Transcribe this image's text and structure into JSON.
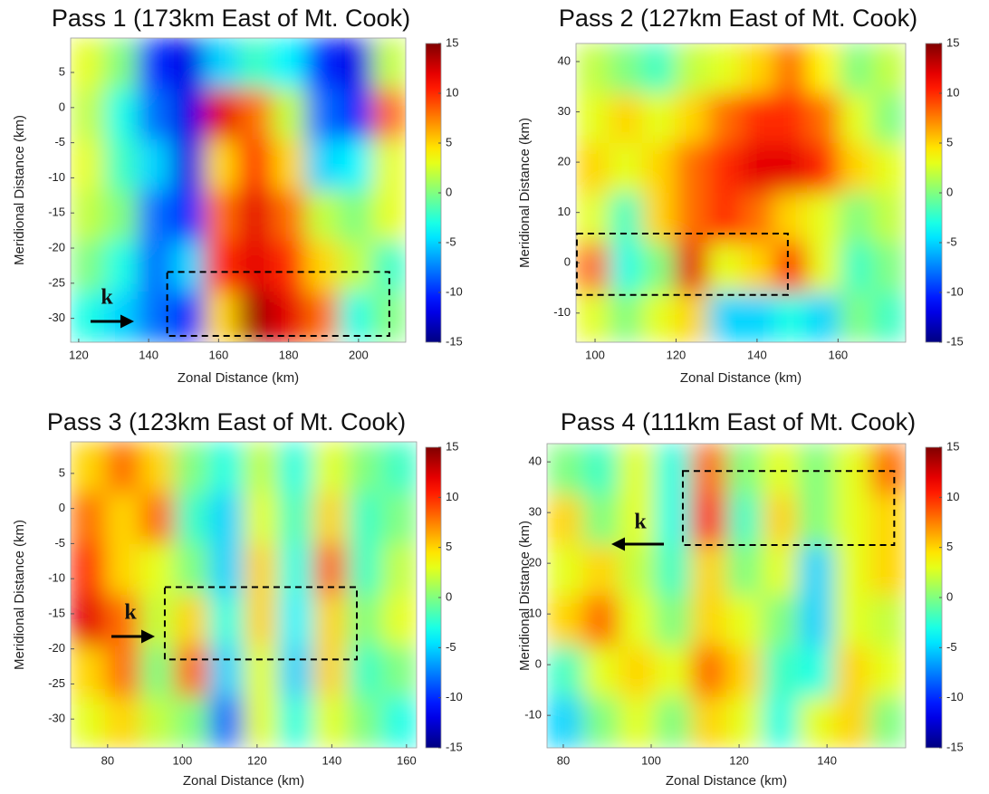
{
  "chart_data": [
    {
      "type": "heatmap",
      "title": "Pass 1 (173km East of Mt. Cook)",
      "xlabel": "Zonal Distance (km)",
      "ylabel": "Meridional Distance (km)",
      "colormap": "jet",
      "xlim": [
        117.7,
        213.5
      ],
      "ylim": [
        -33.4,
        9.9
      ],
      "xticks": [
        120,
        140,
        160,
        180,
        200
      ],
      "yticks": [
        5,
        0,
        -5,
        -10,
        -15,
        -20,
        -25,
        -30
      ],
      "zlim": [
        -15,
        15
      ],
      "zticks": [
        15,
        10,
        5,
        0,
        -5,
        -10,
        -15
      ],
      "z": [
        [
          3,
          0,
          -10,
          -12,
          -5,
          -2,
          -4,
          -10,
          -12,
          2
        ],
        [
          2,
          -3,
          -8,
          -12,
          12,
          8,
          2,
          -8,
          -10,
          8
        ],
        [
          3,
          -2,
          -5,
          -12,
          5,
          10,
          5,
          -5,
          -4,
          3
        ],
        [
          2,
          0,
          -8,
          -10,
          8,
          12,
          8,
          2,
          0,
          3
        ],
        [
          0,
          -3,
          -8,
          -5,
          10,
          12,
          10,
          5,
          2,
          -2
        ],
        [
          -3,
          -5,
          -8,
          -10,
          5,
          14,
          12,
          8,
          -3,
          0
        ]
      ],
      "box": {
        "x": [
          145.3,
          208.8
        ],
        "y": [
          -32.5,
          -23.4
        ]
      },
      "annotations": [
        {
          "text": "k"
        }
      ]
    },
    {
      "type": "heatmap",
      "title": "Pass 2 (127km East of Mt. Cook)",
      "xlabel": "Zonal Distance (km)",
      "ylabel": "Meridional Distance (km)",
      "colormap": "jet",
      "xlim": [
        95.3,
        176.7
      ],
      "ylim": [
        -15.8,
        43.6
      ],
      "xticks": [
        100,
        120,
        140,
        160
      ],
      "yticks": [
        40,
        30,
        20,
        10,
        0,
        -10
      ],
      "zlim": [
        -15,
        15
      ],
      "zticks": [
        15,
        10,
        5,
        0,
        -5,
        -10,
        -15
      ],
      "z": [
        [
          2,
          0,
          -2,
          2,
          3,
          5,
          8,
          4,
          0,
          2
        ],
        [
          3,
          5,
          3,
          5,
          8,
          10,
          10,
          8,
          3,
          0
        ],
        [
          5,
          3,
          5,
          8,
          10,
          12,
          12,
          10,
          5,
          3
        ],
        [
          3,
          -2,
          5,
          8,
          10,
          8,
          5,
          3,
          0,
          2
        ],
        [
          8,
          -3,
          0,
          12,
          3,
          5,
          10,
          3,
          -2,
          0
        ],
        [
          3,
          0,
          3,
          5,
          -5,
          -5,
          -3,
          -5,
          0,
          -2
        ]
      ],
      "box": {
        "x": [
          95.5,
          147.6
        ],
        "y": [
          -6.4,
          5.8
        ]
      }
    },
    {
      "type": "heatmap",
      "title": "Pass 3 (123km East of Mt. Cook)",
      "xlabel": "Zonal Distance (km)",
      "ylabel": "Meridional Distance (km)",
      "colormap": "jet",
      "xlim": [
        70.1,
        162.7
      ],
      "ylim": [
        -34.1,
        9.5
      ],
      "xticks": [
        80,
        100,
        120,
        140,
        160
      ],
      "yticks": [
        5,
        0,
        -5,
        -10,
        -15,
        -20,
        -25,
        -30
      ],
      "zlim": [
        -15,
        15
      ],
      "zticks": [
        15,
        10,
        5,
        0,
        -5,
        -10,
        -15
      ],
      "z": [
        [
          5,
          8,
          5,
          0,
          -3,
          2,
          -3,
          3,
          0,
          -2
        ],
        [
          8,
          5,
          8,
          -2,
          -5,
          3,
          -2,
          5,
          -2,
          0
        ],
        [
          10,
          5,
          3,
          0,
          -5,
          5,
          -3,
          8,
          -2,
          2
        ],
        [
          12,
          8,
          2,
          5,
          -3,
          5,
          -4,
          5,
          0,
          3
        ],
        [
          5,
          8,
          0,
          8,
          -5,
          3,
          -5,
          5,
          -2,
          0
        ],
        [
          3,
          5,
          2,
          0,
          -8,
          3,
          -3,
          3,
          0,
          -3
        ]
      ],
      "box": {
        "x": [
          95.3,
          146.7
        ],
        "y": [
          -21.5,
          -11.2
        ]
      },
      "annotations": [
        {
          "text": "k"
        }
      ]
    },
    {
      "type": "heatmap",
      "title": "Pass 4 (111km East of Mt. Cook)",
      "xlabel": "Zonal Distance (km)",
      "ylabel": "Meridional Distance (km)",
      "colormap": "jet",
      "xlim": [
        76.3,
        157.9
      ],
      "ylim": [
        -16.4,
        43.6
      ],
      "xticks": [
        80,
        100,
        120,
        140
      ],
      "yticks": [
        40,
        30,
        20,
        10,
        0,
        -10
      ],
      "zlim": [
        -15,
        15
      ],
      "zticks": [
        15,
        10,
        5,
        0,
        -5,
        -10,
        -15
      ],
      "z": [
        [
          0,
          -2,
          3,
          -3,
          8,
          0,
          3,
          0,
          3,
          8
        ],
        [
          5,
          0,
          3,
          -3,
          10,
          -2,
          5,
          0,
          3,
          5
        ],
        [
          3,
          5,
          2,
          -2,
          5,
          0,
          3,
          -5,
          3,
          5
        ],
        [
          5,
          8,
          3,
          0,
          5,
          3,
          0,
          -5,
          3,
          2
        ],
        [
          -2,
          3,
          5,
          3,
          8,
          5,
          -2,
          -3,
          5,
          3
        ],
        [
          -5,
          0,
          3,
          0,
          5,
          3,
          -3,
          3,
          5,
          0
        ]
      ],
      "box": {
        "x": [
          107.2,
          155.3
        ],
        "y": [
          23.6,
          38.2
        ]
      },
      "annotations": [
        {
          "text": "k"
        }
      ]
    }
  ]
}
